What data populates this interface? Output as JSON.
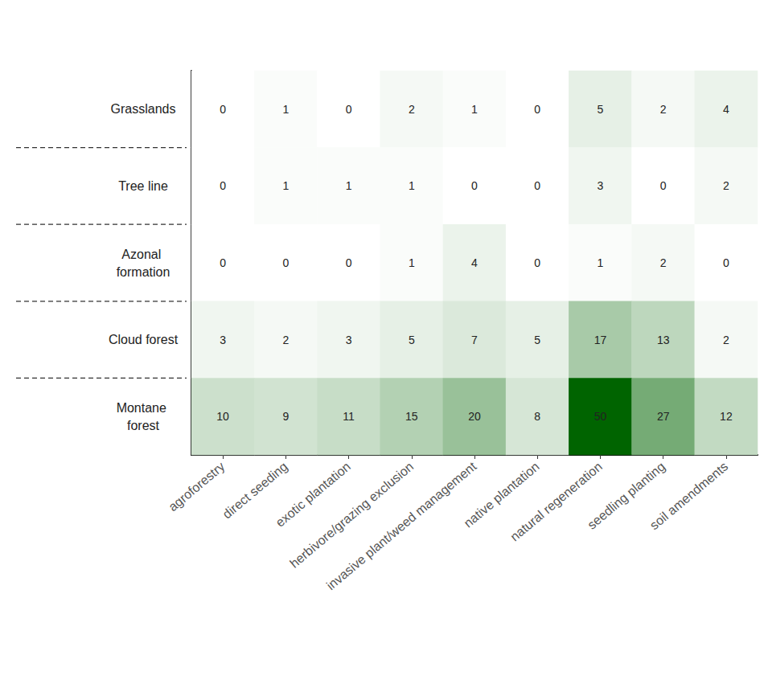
{
  "chart_data": {
    "type": "heatmap",
    "x": [
      "agroforestry",
      "direct seeding",
      "exotic plantation",
      "herbivore/grazing exclusion",
      "invasive plant/weed management",
      "native plantation",
      "natural regeneration",
      "seedling planting",
      "soil amendments"
    ],
    "y": [
      "Grasslands",
      "Tree line",
      "Azonal formation",
      "Cloud forest",
      "Montane forest"
    ],
    "values": [
      [
        0,
        1,
        0,
        2,
        1,
        0,
        5,
        2,
        4
      ],
      [
        0,
        1,
        1,
        1,
        0,
        0,
        3,
        0,
        2
      ],
      [
        0,
        0,
        0,
        1,
        4,
        0,
        1,
        2,
        0
      ],
      [
        3,
        2,
        3,
        5,
        7,
        5,
        17,
        13,
        2
      ],
      [
        10,
        9,
        11,
        15,
        20,
        8,
        50,
        27,
        12
      ]
    ],
    "color": "#006400",
    "data_labels": true
  }
}
